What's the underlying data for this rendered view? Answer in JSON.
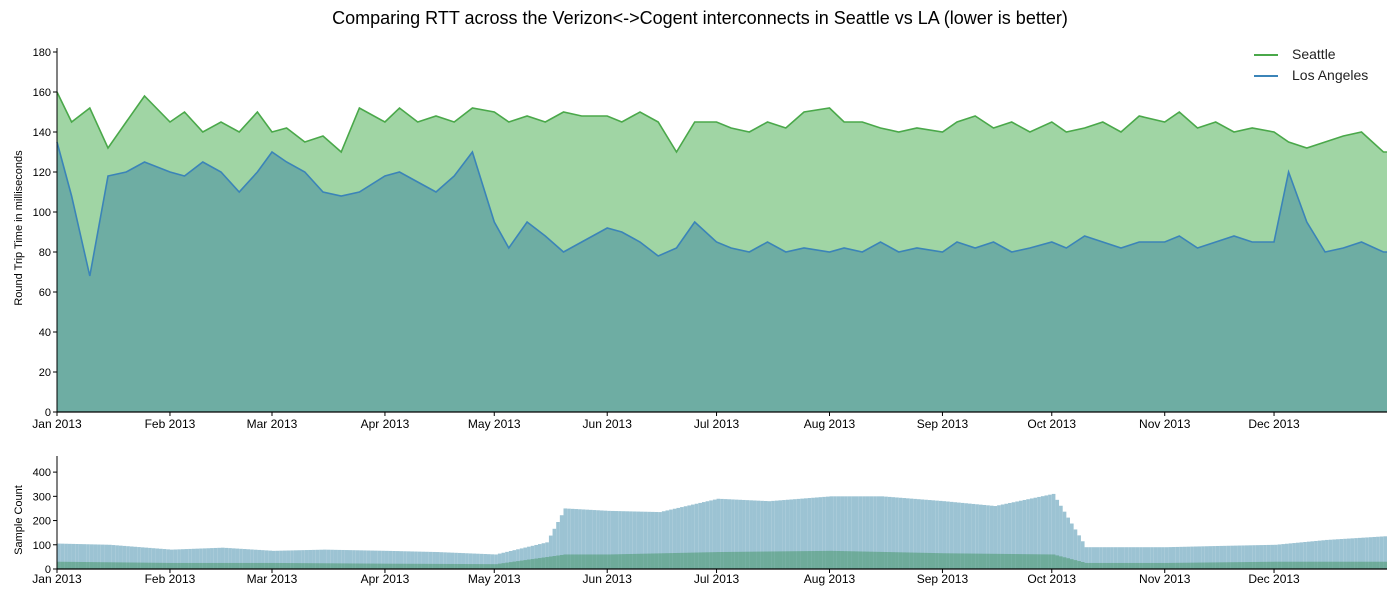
{
  "chart_data": [
    {
      "type": "area",
      "title": "Comparing RTT across the Verizon<->Cogent interconnects in Seattle vs LA (lower is better)",
      "xlabel": "",
      "ylabel": "Round Trip Time in milliseconds",
      "ylim": [
        0,
        180
      ],
      "yticks": [
        "0",
        "20",
        "40",
        "60",
        "80",
        "100",
        "120",
        "140",
        "160",
        "180"
      ],
      "xlim": [
        "2013-01-01",
        "2014-01-01"
      ],
      "xticks": [
        {
          "date": "2013-01-01",
          "label": "Jan 2013"
        },
        {
          "date": "2013-02-01",
          "label": "Feb 2013"
        },
        {
          "date": "2013-03-01",
          "label": "Mar 2013"
        },
        {
          "date": "2013-04-01",
          "label": "Apr 2013"
        },
        {
          "date": "2013-05-01",
          "label": "May 2013"
        },
        {
          "date": "2013-06-01",
          "label": "Jun 2013"
        },
        {
          "date": "2013-07-01",
          "label": "Jul 2013"
        },
        {
          "date": "2013-08-01",
          "label": "Aug 2013"
        },
        {
          "date": "2013-09-01",
          "label": "Sep 2013"
        },
        {
          "date": "2013-10-01",
          "label": "Oct 2013"
        },
        {
          "date": "2013-11-01",
          "label": "Nov 2013"
        },
        {
          "date": "2013-12-01",
          "label": "Dec 2013"
        }
      ],
      "grid": true,
      "legend_position": "top-right",
      "series": [
        {
          "name": "Seattle",
          "line_color": "#4aa84a",
          "fill_color": "#a0d5a4",
          "points": [
            [
              "2013-01-01",
              160
            ],
            [
              "2013-01-05",
              145
            ],
            [
              "2013-01-10",
              152
            ],
            [
              "2013-01-15",
              132
            ],
            [
              "2013-01-20",
              145
            ],
            [
              "2013-01-25",
              158
            ],
            [
              "2013-02-01",
              145
            ],
            [
              "2013-02-05",
              150
            ],
            [
              "2013-02-10",
              140
            ],
            [
              "2013-02-15",
              145
            ],
            [
              "2013-02-20",
              140
            ],
            [
              "2013-02-25",
              150
            ],
            [
              "2013-03-01",
              140
            ],
            [
              "2013-03-05",
              142
            ],
            [
              "2013-03-10",
              135
            ],
            [
              "2013-03-15",
              138
            ],
            [
              "2013-03-20",
              130
            ],
            [
              "2013-03-25",
              152
            ],
            [
              "2013-04-01",
              145
            ],
            [
              "2013-04-05",
              152
            ],
            [
              "2013-04-10",
              145
            ],
            [
              "2013-04-15",
              148
            ],
            [
              "2013-04-20",
              145
            ],
            [
              "2013-04-25",
              152
            ],
            [
              "2013-05-01",
              150
            ],
            [
              "2013-05-05",
              145
            ],
            [
              "2013-05-10",
              148
            ],
            [
              "2013-05-15",
              145
            ],
            [
              "2013-05-20",
              150
            ],
            [
              "2013-05-25",
              148
            ],
            [
              "2013-06-01",
              148
            ],
            [
              "2013-06-05",
              145
            ],
            [
              "2013-06-10",
              150
            ],
            [
              "2013-06-15",
              145
            ],
            [
              "2013-06-20",
              130
            ],
            [
              "2013-06-25",
              145
            ],
            [
              "2013-07-01",
              145
            ],
            [
              "2013-07-05",
              142
            ],
            [
              "2013-07-10",
              140
            ],
            [
              "2013-07-15",
              145
            ],
            [
              "2013-07-20",
              142
            ],
            [
              "2013-07-25",
              150
            ],
            [
              "2013-08-01",
              152
            ],
            [
              "2013-08-05",
              145
            ],
            [
              "2013-08-10",
              145
            ],
            [
              "2013-08-15",
              142
            ],
            [
              "2013-08-20",
              140
            ],
            [
              "2013-08-25",
              142
            ],
            [
              "2013-09-01",
              140
            ],
            [
              "2013-09-05",
              145
            ],
            [
              "2013-09-10",
              148
            ],
            [
              "2013-09-15",
              142
            ],
            [
              "2013-09-20",
              145
            ],
            [
              "2013-09-25",
              140
            ],
            [
              "2013-10-01",
              145
            ],
            [
              "2013-10-05",
              140
            ],
            [
              "2013-10-10",
              142
            ],
            [
              "2013-10-15",
              145
            ],
            [
              "2013-10-20",
              140
            ],
            [
              "2013-10-25",
              148
            ],
            [
              "2013-11-01",
              145
            ],
            [
              "2013-11-05",
              150
            ],
            [
              "2013-11-10",
              142
            ],
            [
              "2013-11-15",
              145
            ],
            [
              "2013-11-20",
              140
            ],
            [
              "2013-11-25",
              142
            ],
            [
              "2013-12-01",
              140
            ],
            [
              "2013-12-05",
              135
            ],
            [
              "2013-12-10",
              132
            ],
            [
              "2013-12-15",
              135
            ],
            [
              "2013-12-20",
              138
            ],
            [
              "2013-12-25",
              140
            ],
            [
              "2013-12-31",
              130
            ]
          ]
        },
        {
          "name": "Los Angeles",
          "line_color": "#3b84b8",
          "fill_color": "#6eada3",
          "points": [
            [
              "2013-01-01",
              135
            ],
            [
              "2013-01-05",
              108
            ],
            [
              "2013-01-10",
              68
            ],
            [
              "2013-01-15",
              118
            ],
            [
              "2013-01-20",
              120
            ],
            [
              "2013-01-25",
              125
            ],
            [
              "2013-02-01",
              120
            ],
            [
              "2013-02-05",
              118
            ],
            [
              "2013-02-10",
              125
            ],
            [
              "2013-02-15",
              120
            ],
            [
              "2013-02-20",
              110
            ],
            [
              "2013-02-25",
              120
            ],
            [
              "2013-03-01",
              130
            ],
            [
              "2013-03-05",
              125
            ],
            [
              "2013-03-10",
              120
            ],
            [
              "2013-03-15",
              110
            ],
            [
              "2013-03-20",
              108
            ],
            [
              "2013-03-25",
              110
            ],
            [
              "2013-04-01",
              118
            ],
            [
              "2013-04-05",
              120
            ],
            [
              "2013-04-10",
              115
            ],
            [
              "2013-04-15",
              110
            ],
            [
              "2013-04-20",
              118
            ],
            [
              "2013-04-25",
              130
            ],
            [
              "2013-05-01",
              95
            ],
            [
              "2013-05-05",
              82
            ],
            [
              "2013-05-10",
              95
            ],
            [
              "2013-05-15",
              88
            ],
            [
              "2013-05-20",
              80
            ],
            [
              "2013-05-25",
              85
            ],
            [
              "2013-06-01",
              92
            ],
            [
              "2013-06-05",
              90
            ],
            [
              "2013-06-10",
              85
            ],
            [
              "2013-06-15",
              78
            ],
            [
              "2013-06-20",
              82
            ],
            [
              "2013-06-25",
              95
            ],
            [
              "2013-07-01",
              85
            ],
            [
              "2013-07-05",
              82
            ],
            [
              "2013-07-10",
              80
            ],
            [
              "2013-07-15",
              85
            ],
            [
              "2013-07-20",
              80
            ],
            [
              "2013-07-25",
              82
            ],
            [
              "2013-08-01",
              80
            ],
            [
              "2013-08-05",
              82
            ],
            [
              "2013-08-10",
              80
            ],
            [
              "2013-08-15",
              85
            ],
            [
              "2013-08-20",
              80
            ],
            [
              "2013-08-25",
              82
            ],
            [
              "2013-09-01",
              80
            ],
            [
              "2013-09-05",
              85
            ],
            [
              "2013-09-10",
              82
            ],
            [
              "2013-09-15",
              85
            ],
            [
              "2013-09-20",
              80
            ],
            [
              "2013-09-25",
              82
            ],
            [
              "2013-10-01",
              85
            ],
            [
              "2013-10-05",
              82
            ],
            [
              "2013-10-10",
              88
            ],
            [
              "2013-10-15",
              85
            ],
            [
              "2013-10-20",
              82
            ],
            [
              "2013-10-25",
              85
            ],
            [
              "2013-11-01",
              85
            ],
            [
              "2013-11-05",
              88
            ],
            [
              "2013-11-10",
              82
            ],
            [
              "2013-11-15",
              85
            ],
            [
              "2013-11-20",
              88
            ],
            [
              "2013-11-25",
              85
            ],
            [
              "2013-12-01",
              85
            ],
            [
              "2013-12-05",
              120
            ],
            [
              "2013-12-10",
              95
            ],
            [
              "2013-12-15",
              80
            ],
            [
              "2013-12-20",
              82
            ],
            [
              "2013-12-25",
              85
            ],
            [
              "2013-12-31",
              80
            ]
          ]
        }
      ]
    },
    {
      "type": "bar",
      "xlabel": "",
      "ylabel": "Sample Count",
      "ylim": [
        0,
        450
      ],
      "yticks": [
        "0",
        "100",
        "200",
        "300",
        "400"
      ],
      "xlim": [
        "2013-01-01",
        "2014-01-01"
      ],
      "xticks": [
        {
          "date": "2013-01-01",
          "label": "Jan 2013"
        },
        {
          "date": "2013-02-01",
          "label": "Feb 2013"
        },
        {
          "date": "2013-03-01",
          "label": "Mar 2013"
        },
        {
          "date": "2013-04-01",
          "label": "Apr 2013"
        },
        {
          "date": "2013-05-01",
          "label": "May 2013"
        },
        {
          "date": "2013-06-01",
          "label": "Jun 2013"
        },
        {
          "date": "2013-07-01",
          "label": "Jul 2013"
        },
        {
          "date": "2013-08-01",
          "label": "Aug 2013"
        },
        {
          "date": "2013-09-01",
          "label": "Sep 2013"
        },
        {
          "date": "2013-10-01",
          "label": "Oct 2013"
        },
        {
          "date": "2013-11-01",
          "label": "Nov 2013"
        },
        {
          "date": "2013-12-01",
          "label": "Dec 2013"
        }
      ],
      "grid": true,
      "series": [
        {
          "fill_color": "#9cc3d3",
          "points": [
            [
              "2013-01-01",
              105
            ],
            [
              "2013-01-15",
              100
            ],
            [
              "2013-02-01",
              80
            ],
            [
              "2013-02-15",
              88
            ],
            [
              "2013-03-01",
              75
            ],
            [
              "2013-03-15",
              80
            ],
            [
              "2013-04-01",
              75
            ],
            [
              "2013-04-15",
              70
            ],
            [
              "2013-05-01",
              60
            ],
            [
              "2013-05-15",
              110
            ],
            [
              "2013-05-20",
              250
            ],
            [
              "2013-06-01",
              240
            ],
            [
              "2013-06-15",
              235
            ],
            [
              "2013-07-01",
              290
            ],
            [
              "2013-07-15",
              280
            ],
            [
              "2013-08-01",
              300
            ],
            [
              "2013-08-15",
              300
            ],
            [
              "2013-09-01",
              280
            ],
            [
              "2013-09-15",
              260
            ],
            [
              "2013-10-01",
              310
            ],
            [
              "2013-10-10",
              90
            ],
            [
              "2013-11-01",
              90
            ],
            [
              "2013-11-15",
              95
            ],
            [
              "2013-12-01",
              100
            ],
            [
              "2013-12-15",
              120
            ],
            [
              "2013-12-31",
              135
            ]
          ]
        },
        {
          "fill_color": "#6eab9a",
          "points": [
            [
              "2013-01-01",
              30
            ],
            [
              "2013-02-01",
              25
            ],
            [
              "2013-03-01",
              25
            ],
            [
              "2013-04-01",
              22
            ],
            [
              "2013-05-01",
              20
            ],
            [
              "2013-05-20",
              60
            ],
            [
              "2013-06-01",
              60
            ],
            [
              "2013-07-01",
              70
            ],
            [
              "2013-08-01",
              75
            ],
            [
              "2013-09-01",
              65
            ],
            [
              "2013-10-01",
              60
            ],
            [
              "2013-10-10",
              25
            ],
            [
              "2013-11-01",
              25
            ],
            [
              "2013-12-01",
              30
            ],
            [
              "2013-12-31",
              30
            ]
          ]
        }
      ]
    }
  ]
}
